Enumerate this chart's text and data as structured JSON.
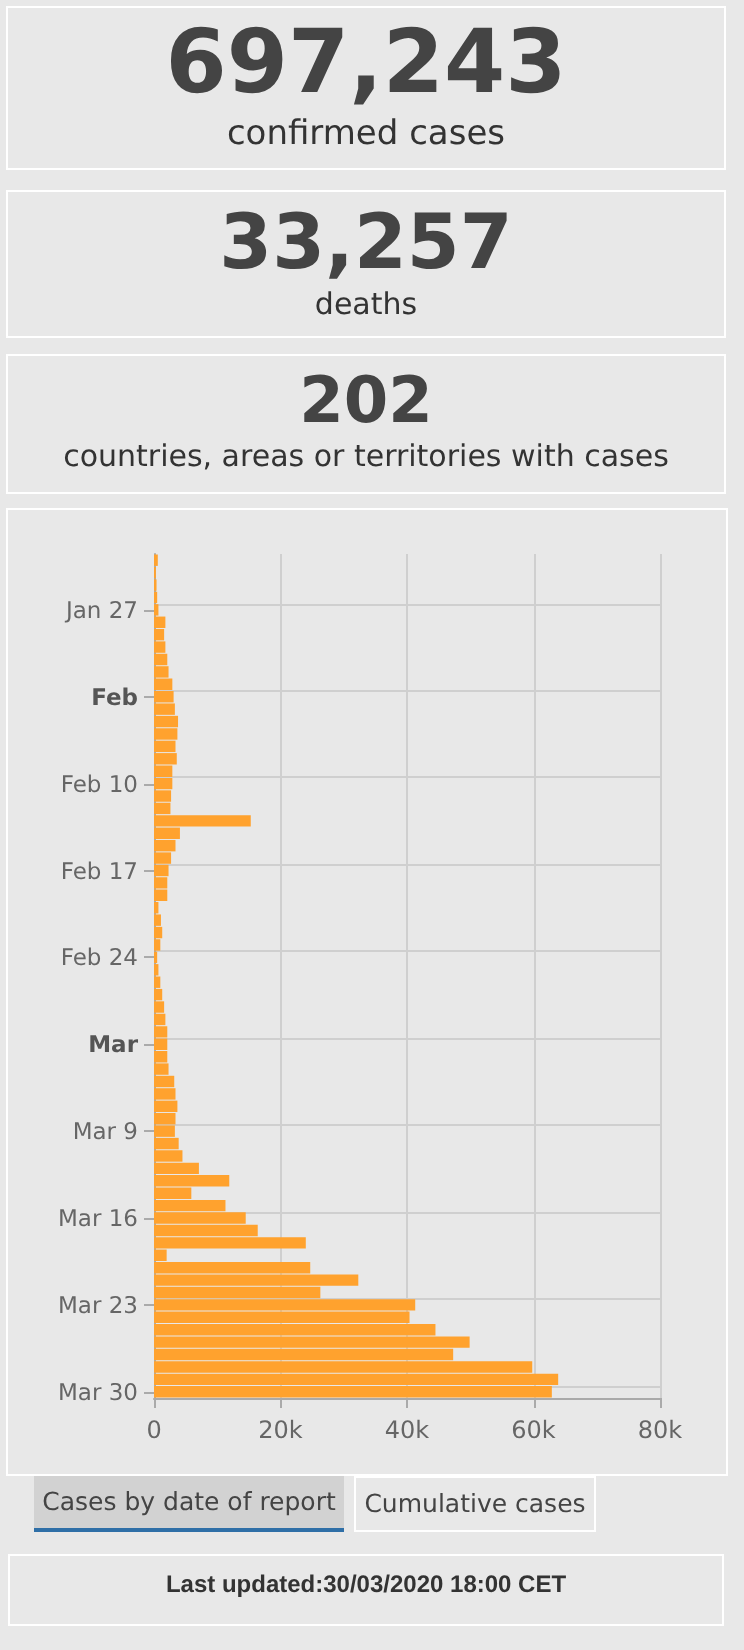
{
  "chart_data": [
    {
      "type": "other",
      "title": "697,243",
      "subtitle": "confirmed cases"
    },
    {
      "type": "other",
      "title": "33,257",
      "subtitle": "deaths"
    },
    {
      "type": "other",
      "title": "202",
      "subtitle": "countries, areas or territories with cases"
    },
    {
      "type": "bar",
      "orientation": "horizontal",
      "color": "#ffa22e",
      "grid": true,
      "categories": [
        null,
        null,
        null,
        null,
        "Jan 27",
        null,
        null,
        null,
        null,
        null,
        null,
        "Feb",
        null,
        null,
        null,
        null,
        null,
        null,
        "Feb 10",
        null,
        null,
        null,
        null,
        null,
        null,
        "Feb 17",
        null,
        null,
        null,
        null,
        null,
        null,
        "Feb 24",
        null,
        null,
        null,
        null,
        null,
        null,
        "Mar",
        null,
        null,
        null,
        null,
        null,
        null,
        "Mar 9",
        null,
        null,
        null,
        null,
        null,
        null,
        "Mar 16",
        null,
        null,
        null,
        null,
        null,
        null,
        "Mar 23",
        null,
        null,
        null,
        null,
        null,
        null,
        "Mar 30"
      ],
      "values": [
        600,
        300,
        400,
        500,
        700,
        1800,
        1600,
        1800,
        2100,
        2300,
        2900,
        3100,
        3300,
        3800,
        3700,
        3400,
        3600,
        2900,
        2900,
        2700,
        2600,
        15300,
        4100,
        3400,
        2700,
        2300,
        2100,
        2100,
        700,
        1100,
        1300,
        1000,
        500,
        700,
        1000,
        1300,
        1600,
        1800,
        2100,
        2100,
        2100,
        2300,
        3200,
        3400,
        3700,
        3400,
        3300,
        3900,
        4500,
        7100,
        11900,
        5900,
        11300,
        14500,
        16400,
        24000,
        2000,
        24700,
        32300,
        26300,
        41300,
        40400,
        44500,
        49900,
        47300,
        59800,
        63900,
        62900
      ],
      "xlim": [
        0,
        80000
      ],
      "xticks": [
        0,
        {
          "value": 20000,
          "label": "20k"
        },
        {
          "value": 40000,
          "label": "40k"
        },
        {
          "value": 60000,
          "label": "60k"
        },
        {
          "value": 80000,
          "label": "80k"
        }
      ],
      "annotations": [
        "Cases by date of report",
        "Cumulative cases",
        "Last updated:30/03/2020 18:00 CET"
      ]
    }
  ]
}
